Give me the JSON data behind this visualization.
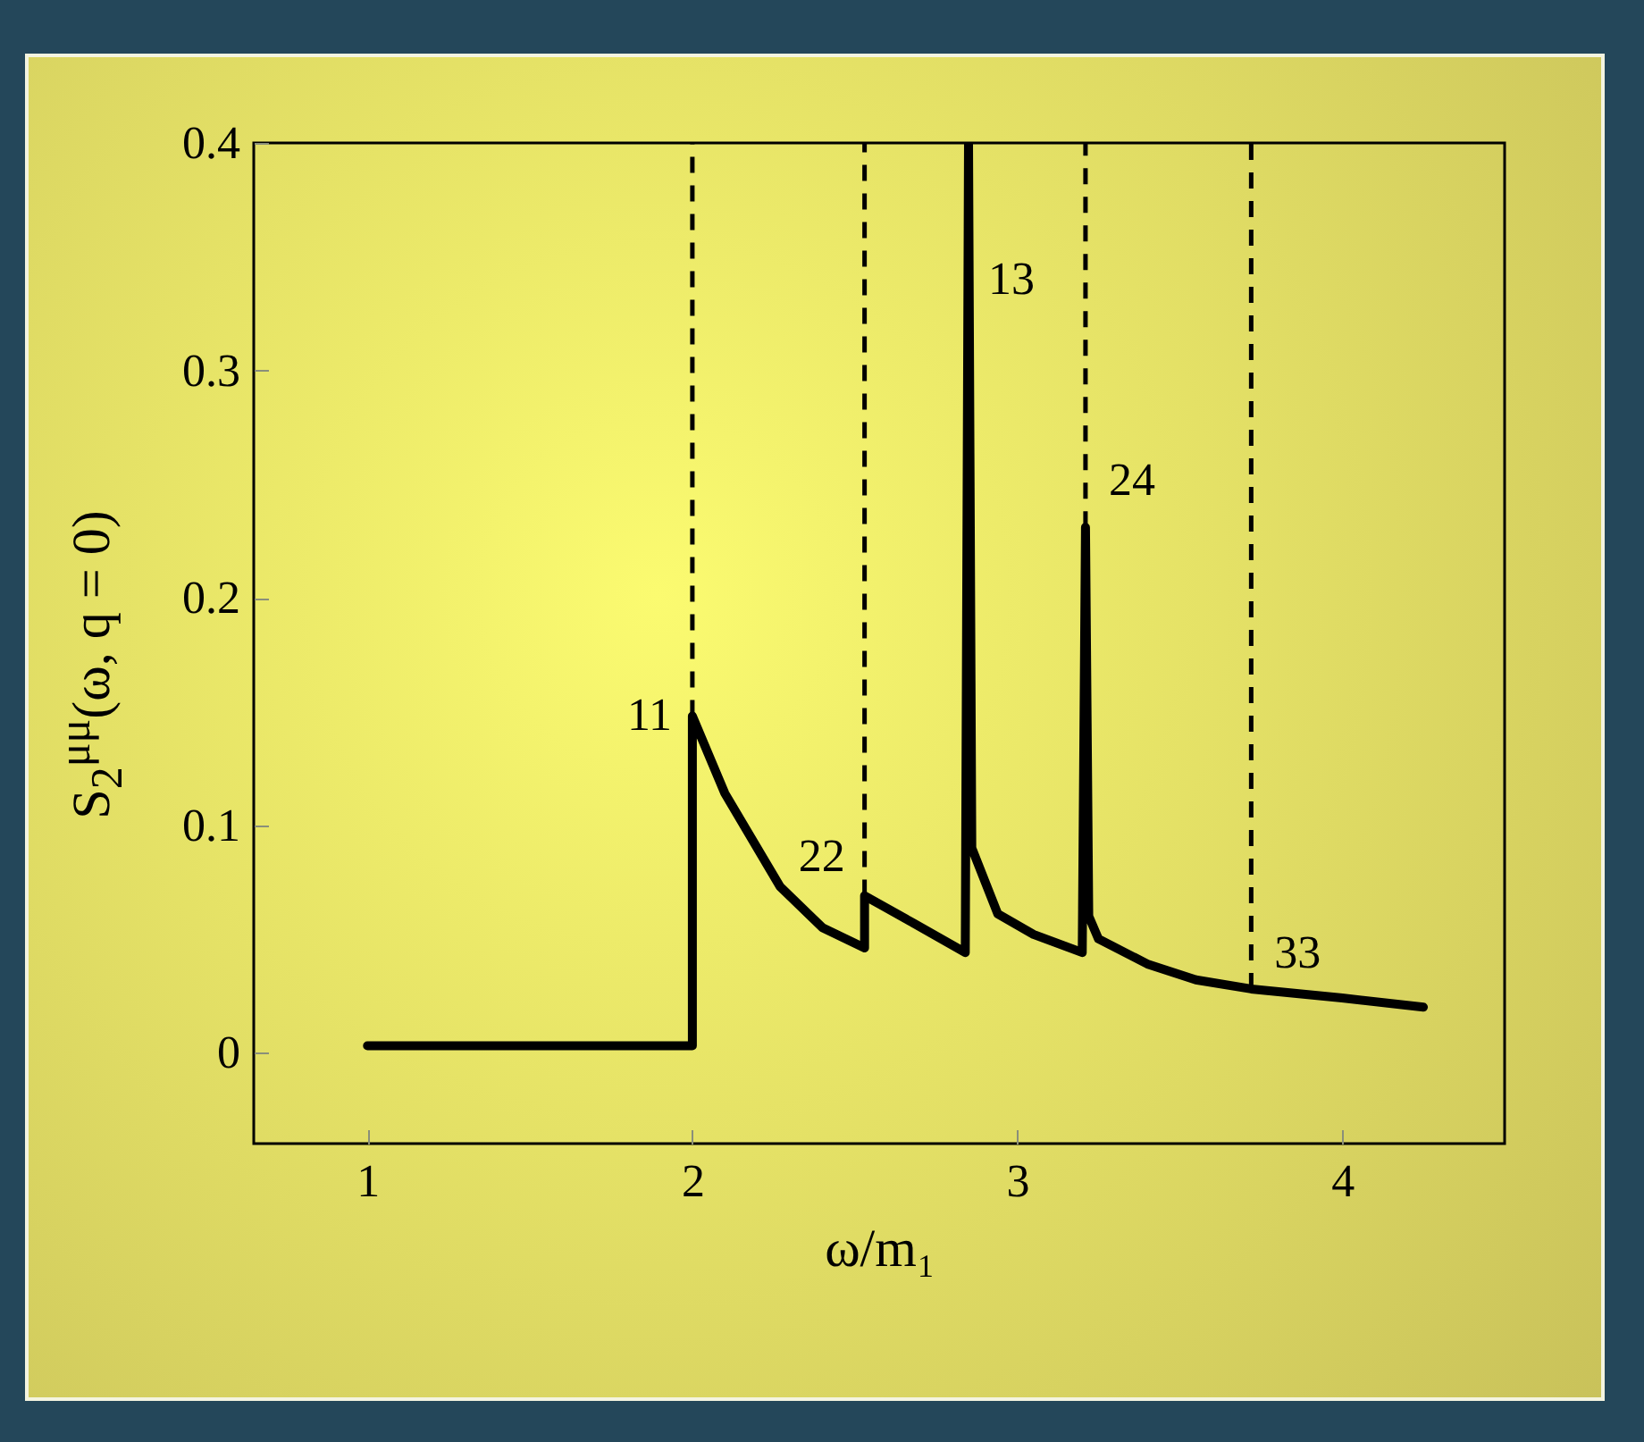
{
  "chart_data": {
    "type": "line",
    "xlabel": "ω/m₁",
    "ylabel": "S$_{2}$$^{μμ}$(ω, q = 0)",
    "x": [
      1.0,
      2.0,
      2.0,
      2.1,
      2.27,
      2.4,
      2.53,
      2.53,
      2.68,
      2.84,
      2.85,
      2.86,
      2.94,
      3.05,
      3.2,
      3.21,
      3.22,
      3.25,
      3.4,
      3.55,
      3.72,
      4.0,
      4.25
    ],
    "series": [
      {
        "color": "#000000",
        "line_style": "solid",
        "values": [
          0.003,
          0.003,
          0.148,
          0.114,
          0.073,
          0.055,
          0.046,
          0.069,
          0.057,
          0.044,
          0.4,
          0.09,
          0.061,
          0.052,
          0.044,
          0.231,
          0.06,
          0.05,
          0.039,
          0.032,
          0.028,
          0.024,
          0.02
        ]
      }
    ],
    "ref_lines": [
      {
        "axis": "x",
        "value": 2.0,
        "line_style": "dashed",
        "color": "#000000"
      },
      {
        "axis": "x",
        "value": 2.53,
        "line_style": "dashed",
        "color": "#000000"
      },
      {
        "axis": "x",
        "value": 3.21,
        "line_style": "dashed",
        "color": "#000000"
      },
      {
        "axis": "x",
        "value": 3.72,
        "line_style": "dashed",
        "color": "#000000"
      }
    ],
    "xlim": [
      0.65,
      4.5
    ],
    "xticks": [
      1,
      2,
      3,
      4
    ],
    "ylim": [
      -0.04,
      0.4
    ],
    "yticks": [
      0,
      0.1,
      0.2,
      0.3,
      0.4
    ],
    "annotations": [
      {
        "text": "11",
        "x": 2.0,
        "y": 0.148
      },
      {
        "text": "22",
        "x": 2.53,
        "y": 0.069
      },
      {
        "text": "13",
        "x": 2.85,
        "y": 0.34
      },
      {
        "text": "24",
        "x": 3.21,
        "y": 0.231
      },
      {
        "text": "33",
        "x": 3.72,
        "y": 0.028
      }
    ]
  }
}
